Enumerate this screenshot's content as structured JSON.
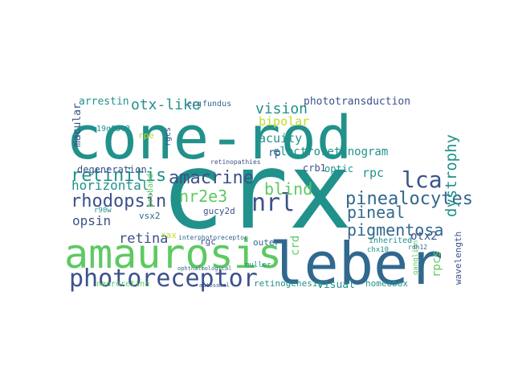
{
  "cloud": {
    "words": [
      {
        "text": "crx",
        "color": "#21918c"
      },
      {
        "text": "cone-rod",
        "color": "#21918c"
      },
      {
        "text": "leber",
        "color": "#31688e"
      },
      {
        "text": "amaurosis",
        "color": "#5ec962"
      },
      {
        "text": "photoreceptor",
        "color": "#3b528b"
      },
      {
        "text": "nrl",
        "color": "#3b528b"
      },
      {
        "text": "lca",
        "color": "#3b528b"
      },
      {
        "text": "pinealocytes",
        "color": "#31688e"
      },
      {
        "text": "retinitis",
        "color": "#21918c"
      },
      {
        "text": "rhodopsin",
        "color": "#3b528b"
      },
      {
        "text": "amacrine",
        "color": "#3b528b"
      },
      {
        "text": "nr2e3",
        "color": "#5ec962"
      },
      {
        "text": "blind",
        "color": "#5ec962"
      },
      {
        "text": "pineal",
        "color": "#31688e"
      },
      {
        "text": "pigmentosa",
        "color": "#31688e"
      },
      {
        "text": "dystrophy",
        "color": "#21918c"
      },
      {
        "text": "vision",
        "color": "#21918c"
      },
      {
        "text": "otx-like",
        "color": "#21918c"
      },
      {
        "text": "electroretinogram",
        "color": "#21918c"
      },
      {
        "text": "retina",
        "color": "#3b528b"
      },
      {
        "text": "opsin",
        "color": "#3b528b"
      },
      {
        "text": "horizontal",
        "color": "#21918c"
      },
      {
        "text": "bipolar",
        "color": "#bddf26"
      },
      {
        "text": "acuity",
        "color": "#21918c"
      },
      {
        "text": "phototransduction",
        "color": "#3b528b"
      },
      {
        "text": "arrestin",
        "color": "#21918c"
      },
      {
        "text": "macular",
        "color": "#3b528b"
      },
      {
        "text": "degeneration",
        "color": "#3b528b"
      },
      {
        "text": "otx2",
        "color": "#3b528b"
      },
      {
        "text": "rpc",
        "color": "#21918c"
      },
      {
        "text": "rpcs",
        "color": "#5ec962"
      },
      {
        "text": "crd",
        "color": "#5ec962"
      },
      {
        "text": "visual",
        "color": "#21918c"
      },
      {
        "text": "homeobox",
        "color": "#21918c"
      },
      {
        "text": "retinogenesis",
        "color": "#21918c"
      },
      {
        "text": "optic",
        "color": "#21918c"
      },
      {
        "text": "crb1",
        "color": "#3b528b"
      },
      {
        "text": "rp",
        "color": "#3b528b"
      },
      {
        "text": "vsx2",
        "color": "#31688e"
      },
      {
        "text": "gucy2d",
        "color": "#3b528b"
      },
      {
        "text": "rgc",
        "color": "#3b528b"
      },
      {
        "text": "outer",
        "color": "#31688e"
      },
      {
        "text": "inherited",
        "color": "#21918c"
      },
      {
        "text": "wavelength",
        "color": "#3b528b"
      },
      {
        "text": "19q13.3",
        "color": "#21918c"
      },
      {
        "text": "rpe",
        "color": "#bddf26"
      },
      {
        "text": "rgcs",
        "color": "#3b528b"
      },
      {
        "text": "erg",
        "color": "#31688e"
      },
      {
        "text": "fundus",
        "color": "#31688e"
      },
      {
        "text": "neuroretina",
        "color": "#5ec962"
      },
      {
        "text": "rax",
        "color": "#bddf26"
      },
      {
        "text": "proband",
        "color": "#5ec962"
      },
      {
        "text": "interphotoreceptor",
        "color": "#31688e"
      },
      {
        "text": "retinopathies",
        "color": "#3b528b"
      },
      {
        "text": "chx10",
        "color": "#21918c"
      },
      {
        "text": "ganglion",
        "color": "#5ec962"
      },
      {
        "text": "muller",
        "color": "#21918c"
      },
      {
        "text": "rdh12",
        "color": "#31688e"
      },
      {
        "text": "r90w",
        "color": "#21918c"
      },
      {
        "text": "autosomal",
        "color": "#3b528b"
      },
      {
        "text": "ophthalmological",
        "color": "#31688e"
      }
    ]
  }
}
